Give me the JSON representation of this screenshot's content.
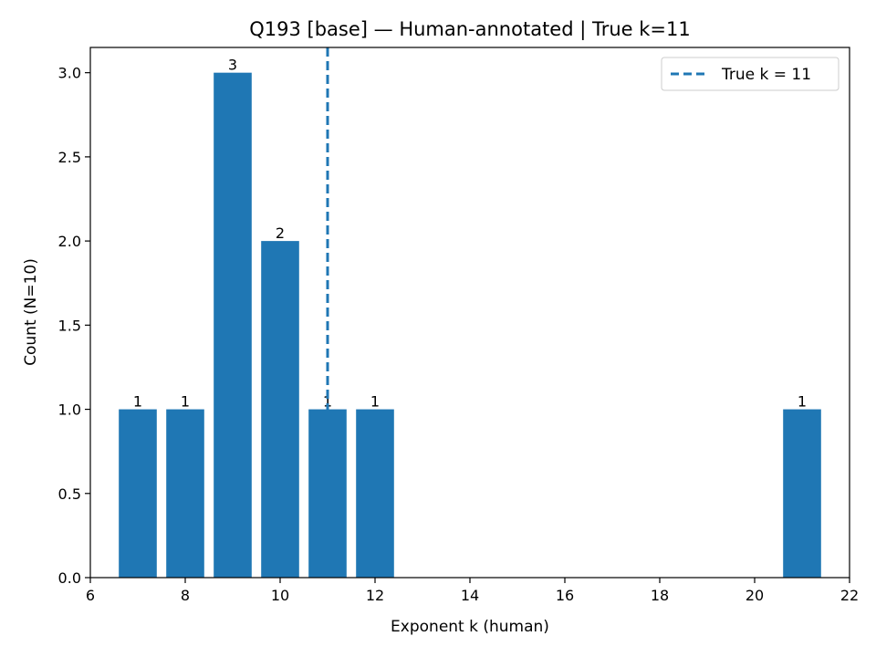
{
  "chart_data": {
    "type": "bar",
    "title": "Q193 [base] — Human-annotated | True k=11",
    "xlabel": "Exponent k (human)",
    "ylabel": "Count (N=10)",
    "xlim": [
      6,
      22
    ],
    "ylim": [
      0,
      3.15
    ],
    "x_ticks": [
      6,
      8,
      10,
      12,
      14,
      16,
      18,
      20,
      22
    ],
    "y_ticks": [
      0.0,
      0.5,
      1.0,
      1.5,
      2.0,
      2.5,
      3.0
    ],
    "y_tick_labels": [
      "0.0",
      "0.5",
      "1.0",
      "1.5",
      "2.0",
      "2.5",
      "3.0"
    ],
    "x": [
      7,
      8,
      9,
      10,
      11,
      12,
      21
    ],
    "values": [
      1,
      1,
      3,
      2,
      1,
      1,
      1
    ],
    "data_labels": [
      "1",
      "1",
      "3",
      "2",
      "1",
      "1",
      "1"
    ],
    "bar_color": "#1f77b4",
    "reference_line": {
      "x": 11,
      "label": "True k = 11",
      "style": "dashed",
      "color": "#1f77b4"
    },
    "legend": {
      "position": "top-right",
      "entries": [
        "True k = 11"
      ]
    },
    "grid": false
  }
}
